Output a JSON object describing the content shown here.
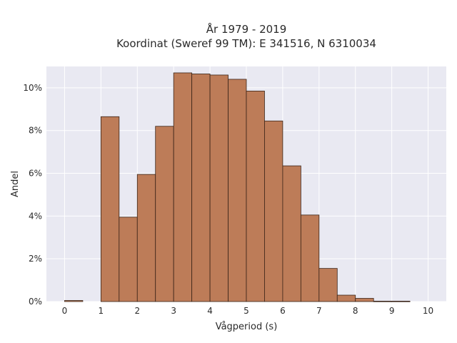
{
  "chart_data": {
    "type": "bar",
    "title_lines": [
      "År 1979 - 2019",
      "Koordinat (Sweref 99 TM): E 341516, N 6310034"
    ],
    "xlabel": "Vågperiod (s)",
    "ylabel": "Andel",
    "xlim": [
      -0.5,
      10.5
    ],
    "ylim": [
      0,
      11.0
    ],
    "x_ticks": [
      0,
      1,
      2,
      3,
      4,
      5,
      6,
      7,
      8,
      9,
      10
    ],
    "y_ticks": [
      0,
      2,
      4,
      6,
      8,
      10
    ],
    "y_tick_suffix": "%",
    "bin_width": 0.5,
    "bins": [
      {
        "start": 0.0,
        "value": 0.05
      },
      {
        "start": 0.5,
        "value": 0.0
      },
      {
        "start": 1.0,
        "value": 8.65
      },
      {
        "start": 1.5,
        "value": 3.95
      },
      {
        "start": 2.0,
        "value": 5.95
      },
      {
        "start": 2.5,
        "value": 8.2
      },
      {
        "start": 3.0,
        "value": 10.7
      },
      {
        "start": 3.5,
        "value": 10.65
      },
      {
        "start": 4.0,
        "value": 10.6
      },
      {
        "start": 4.5,
        "value": 10.4
      },
      {
        "start": 5.0,
        "value": 9.85
      },
      {
        "start": 5.5,
        "value": 8.45
      },
      {
        "start": 6.0,
        "value": 6.35
      },
      {
        "start": 6.5,
        "value": 4.05
      },
      {
        "start": 7.0,
        "value": 1.55
      },
      {
        "start": 7.5,
        "value": 0.3
      },
      {
        "start": 8.0,
        "value": 0.15
      },
      {
        "start": 8.5,
        "value": 0.02
      },
      {
        "start": 9.0,
        "value": 0.02
      }
    ],
    "grid": true,
    "colors": {
      "bar_fill": "#bd7c58",
      "bar_stroke": "#3a2418",
      "plot_bg": "#e9e9f2",
      "grid": "#ffffff"
    }
  }
}
